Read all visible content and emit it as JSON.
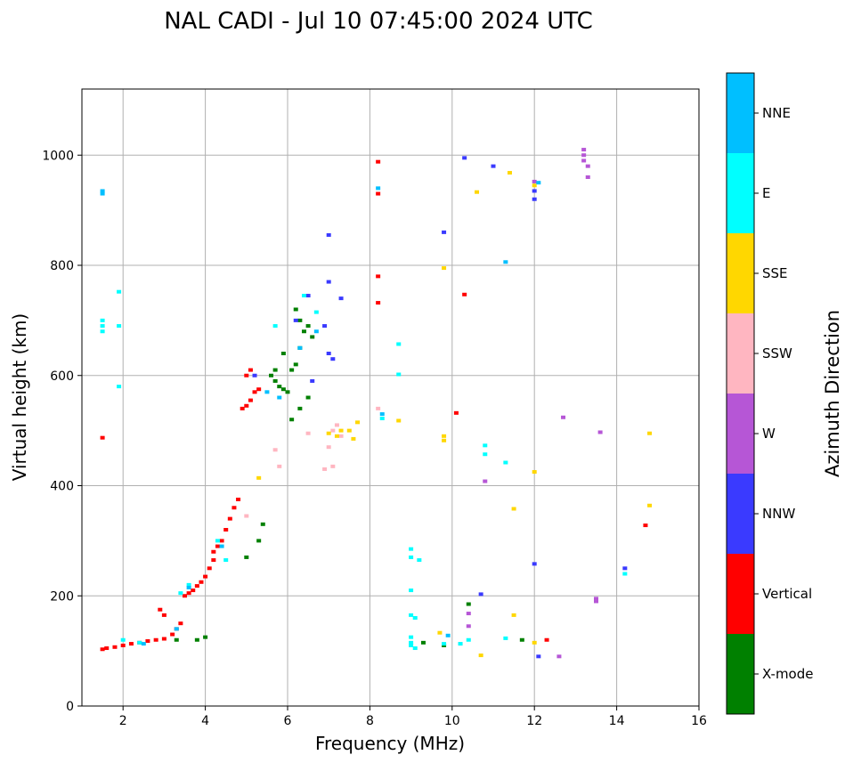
{
  "chart_data": {
    "type": "scatter",
    "title": "NAL CADI - Jul 10 07:45:00 2024 UTC",
    "xlabel": "Frequency (MHz)",
    "ylabel": "Virtual height (km)",
    "xlim": [
      1,
      16
    ],
    "ylim": [
      0,
      1120
    ],
    "xticks": [
      2,
      4,
      6,
      8,
      10,
      12,
      14,
      16
    ],
    "yticks": [
      0,
      200,
      400,
      600,
      800,
      1000
    ],
    "grid": true,
    "colorbar": {
      "label": "Azimuth Direction",
      "categories": [
        {
          "name": "X-mode",
          "color": "#008000"
        },
        {
          "name": "Vertical",
          "color": "#ff0000"
        },
        {
          "name": "NNW",
          "color": "#3a3aff"
        },
        {
          "name": "W",
          "color": "#b656d6"
        },
        {
          "name": "SSW",
          "color": "#ffb6c1"
        },
        {
          "name": "SSE",
          "color": "#ffd700"
        },
        {
          "name": "E",
          "color": "#00ffff"
        },
        {
          "name": "NNE",
          "color": "#00bfff"
        }
      ]
    },
    "series": [
      {
        "name": "Vertical",
        "points": [
          [
            1.5,
            103
          ],
          [
            1.6,
            105
          ],
          [
            1.8,
            107
          ],
          [
            2.0,
            110
          ],
          [
            2.2,
            113
          ],
          [
            2.4,
            115
          ],
          [
            2.6,
            118
          ],
          [
            2.8,
            120
          ],
          [
            3.0,
            122
          ],
          [
            3.2,
            130
          ],
          [
            3.3,
            140
          ],
          [
            3.4,
            150
          ],
          [
            3.5,
            200
          ],
          [
            3.6,
            205
          ],
          [
            3.7,
            210
          ],
          [
            3.8,
            218
          ],
          [
            3.9,
            225
          ],
          [
            4.0,
            235
          ],
          [
            4.1,
            250
          ],
          [
            4.2,
            265
          ],
          [
            4.2,
            280
          ],
          [
            4.3,
            290
          ],
          [
            4.4,
            300
          ],
          [
            4.5,
            320
          ],
          [
            4.6,
            340
          ],
          [
            4.7,
            360
          ],
          [
            4.8,
            375
          ],
          [
            4.9,
            540
          ],
          [
            5.0,
            545
          ],
          [
            5.1,
            555
          ],
          [
            5.2,
            570
          ],
          [
            5.3,
            575
          ],
          [
            5.0,
            600
          ],
          [
            5.1,
            610
          ],
          [
            1.5,
            487
          ],
          [
            8.2,
            988
          ],
          [
            8.2,
            930
          ],
          [
            8.2,
            780
          ],
          [
            8.2,
            732
          ],
          [
            10.1,
            532
          ],
          [
            10.3,
            747
          ],
          [
            14.7,
            328
          ],
          [
            12.3,
            120
          ],
          [
            2.9,
            175
          ],
          [
            3.0,
            165
          ]
        ]
      },
      {
        "name": "X-mode",
        "points": [
          [
            5.6,
            600
          ],
          [
            5.7,
            590
          ],
          [
            5.8,
            580
          ],
          [
            5.9,
            575
          ],
          [
            6.0,
            570
          ],
          [
            6.1,
            610
          ],
          [
            6.2,
            620
          ],
          [
            6.3,
            650
          ],
          [
            6.4,
            680
          ],
          [
            6.5,
            690
          ],
          [
            6.6,
            670
          ],
          [
            6.2,
            720
          ],
          [
            6.3,
            700
          ],
          [
            6.5,
            560
          ],
          [
            6.3,
            540
          ],
          [
            6.1,
            520
          ],
          [
            5.4,
            330
          ],
          [
            5.3,
            300
          ],
          [
            5.0,
            270
          ],
          [
            4.0,
            125
          ],
          [
            3.8,
            120
          ],
          [
            3.3,
            120
          ],
          [
            9.3,
            115
          ],
          [
            9.8,
            110
          ],
          [
            10.4,
            185
          ],
          [
            11.7,
            120
          ],
          [
            5.7,
            610
          ],
          [
            5.9,
            640
          ]
        ]
      },
      {
        "name": "NNW",
        "points": [
          [
            9.8,
            860
          ],
          [
            10.3,
            995
          ],
          [
            11.0,
            980
          ],
          [
            7.0,
            855
          ],
          [
            6.5,
            745
          ],
          [
            7.0,
            770
          ],
          [
            7.3,
            740
          ],
          [
            6.9,
            690
          ],
          [
            7.0,
            640
          ],
          [
            7.1,
            630
          ],
          [
            6.6,
            590
          ],
          [
            5.2,
            600
          ],
          [
            6.2,
            700
          ],
          [
            12.0,
            258
          ],
          [
            14.2,
            250
          ],
          [
            10.7,
            203
          ],
          [
            12.1,
            90
          ],
          [
            12.0,
            935
          ],
          [
            12.0,
            920
          ]
        ]
      },
      {
        "name": "W",
        "points": [
          [
            13.2,
            1010
          ],
          [
            13.2,
            1000
          ],
          [
            13.2,
            990
          ],
          [
            13.3,
            980
          ],
          [
            13.3,
            960
          ],
          [
            12.0,
            952
          ],
          [
            12.7,
            524
          ],
          [
            13.6,
            497
          ],
          [
            13.5,
            195
          ],
          [
            13.5,
            190
          ],
          [
            12.6,
            90
          ],
          [
            10.8,
            408
          ],
          [
            10.4,
            168
          ],
          [
            10.4,
            145
          ]
        ]
      },
      {
        "name": "SSW",
        "points": [
          [
            7.0,
            470
          ],
          [
            7.1,
            500
          ],
          [
            7.2,
            510
          ],
          [
            7.3,
            490
          ],
          [
            6.9,
            430
          ],
          [
            7.1,
            435
          ],
          [
            6.5,
            495
          ],
          [
            5.0,
            345
          ],
          [
            5.7,
            465
          ],
          [
            5.8,
            435
          ],
          [
            8.2,
            540
          ],
          [
            10.2,
            113
          ]
        ]
      },
      {
        "name": "SSE",
        "points": [
          [
            7.0,
            495
          ],
          [
            7.2,
            490
          ],
          [
            7.3,
            500
          ],
          [
            7.5,
            500
          ],
          [
            7.6,
            485
          ],
          [
            7.7,
            515
          ],
          [
            8.7,
            518
          ],
          [
            9.8,
            490
          ],
          [
            9.8,
            482
          ],
          [
            9.8,
            795
          ],
          [
            10.6,
            933
          ],
          [
            11.4,
            968
          ],
          [
            12.0,
            945
          ],
          [
            11.5,
            358
          ],
          [
            12.0,
            425
          ],
          [
            14.8,
            364
          ],
          [
            14.8,
            495
          ],
          [
            11.5,
            165
          ],
          [
            12.0,
            115
          ],
          [
            10.7,
            92
          ],
          [
            9.7,
            133
          ],
          [
            5.3,
            414
          ]
        ]
      },
      {
        "name": "E",
        "points": [
          [
            1.5,
            700
          ],
          [
            1.5,
            690
          ],
          [
            1.5,
            680
          ],
          [
            1.9,
            752
          ],
          [
            1.9,
            690
          ],
          [
            1.9,
            580
          ],
          [
            9.0,
            285
          ],
          [
            9.0,
            270
          ],
          [
            9.2,
            265
          ],
          [
            9.0,
            210
          ],
          [
            9.0,
            165
          ],
          [
            9.1,
            160
          ],
          [
            9.0,
            125
          ],
          [
            9.0,
            115
          ],
          [
            9.0,
            110
          ],
          [
            9.1,
            105
          ],
          [
            9.8,
            113
          ],
          [
            10.2,
            113
          ],
          [
            10.4,
            120
          ],
          [
            11.3,
            442
          ],
          [
            11.3,
            123
          ],
          [
            14.2,
            240
          ],
          [
            8.7,
            657
          ],
          [
            8.7,
            602
          ],
          [
            10.8,
            473
          ],
          [
            10.8,
            457
          ],
          [
            2.0,
            120
          ],
          [
            2.4,
            115
          ],
          [
            3.4,
            205
          ],
          [
            3.6,
            220
          ],
          [
            4.3,
            300
          ],
          [
            4.5,
            265
          ],
          [
            6.4,
            745
          ],
          [
            6.7,
            715
          ],
          [
            5.7,
            690
          ],
          [
            8.3,
            522
          ]
        ]
      },
      {
        "name": "NNE",
        "points": [
          [
            1.5,
            935
          ],
          [
            1.5,
            930
          ],
          [
            11.3,
            806
          ],
          [
            12.1,
            950
          ],
          [
            8.2,
            940
          ],
          [
            8.3,
            530
          ],
          [
            2.5,
            113
          ],
          [
            3.3,
            140
          ],
          [
            3.6,
            215
          ],
          [
            4.4,
            290
          ],
          [
            5.5,
            570
          ],
          [
            5.8,
            560
          ],
          [
            6.7,
            680
          ],
          [
            6.3,
            650
          ],
          [
            9.9,
            128
          ]
        ]
      }
    ]
  }
}
